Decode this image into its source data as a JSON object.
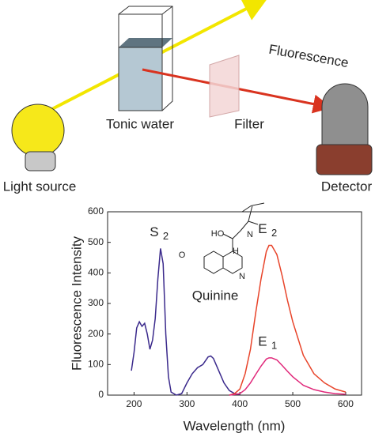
{
  "diagram": {
    "labels": {
      "fluorescence": "Fluorescence",
      "sample": "Tonic water",
      "filter": "Filter",
      "source": "Light source",
      "detector": "Detector"
    }
  },
  "chart_data": {
    "type": "line",
    "xlabel": "Wavelength (nm)",
    "ylabel": "Fluorescence Intensity",
    "xlim": [
      150,
      630
    ],
    "ylim": [
      0,
      600
    ],
    "xticks": [
      200,
      300,
      400,
      500,
      600
    ],
    "yticks": [
      0,
      100,
      200,
      300,
      400,
      500,
      600
    ],
    "molecule": {
      "name": "Quinine",
      "atoms": [
        "HO",
        "H",
        "N",
        "N",
        "O"
      ]
    },
    "series": [
      {
        "name": "S",
        "subscript": "2",
        "color": "#3b2a8c",
        "x": [
          195,
          200,
          205,
          210,
          215,
          220,
          225,
          230,
          235,
          240,
          245,
          250,
          255,
          260,
          265,
          270,
          280,
          290,
          300,
          310,
          320,
          330,
          340,
          345,
          350,
          360,
          370,
          380,
          390,
          400
        ],
        "values": [
          80,
          140,
          220,
          240,
          225,
          235,
          200,
          150,
          180,
          250,
          380,
          480,
          430,
          200,
          60,
          10,
          0,
          5,
          40,
          70,
          90,
          100,
          125,
          128,
          120,
          80,
          40,
          15,
          5,
          2
        ]
      },
      {
        "name": "E",
        "subscript": "2",
        "color": "#e8442a",
        "x": [
          380,
          390,
          400,
          410,
          420,
          430,
          440,
          450,
          455,
          460,
          470,
          480,
          490,
          500,
          520,
          540,
          560,
          580,
          600
        ],
        "values": [
          0,
          5,
          20,
          70,
          150,
          270,
          380,
          470,
          490,
          490,
          460,
          390,
          310,
          240,
          130,
          70,
          40,
          20,
          10
        ]
      },
      {
        "name": "E",
        "subscript": "1",
        "color": "#e0287a",
        "x": [
          380,
          390,
          400,
          410,
          420,
          430,
          440,
          450,
          455,
          460,
          470,
          480,
          490,
          500,
          520,
          540,
          560,
          580,
          600
        ],
        "values": [
          0,
          2,
          5,
          18,
          40,
          68,
          95,
          118,
          122,
          122,
          115,
          97,
          78,
          60,
          32,
          18,
          10,
          5,
          3
        ]
      }
    ]
  }
}
